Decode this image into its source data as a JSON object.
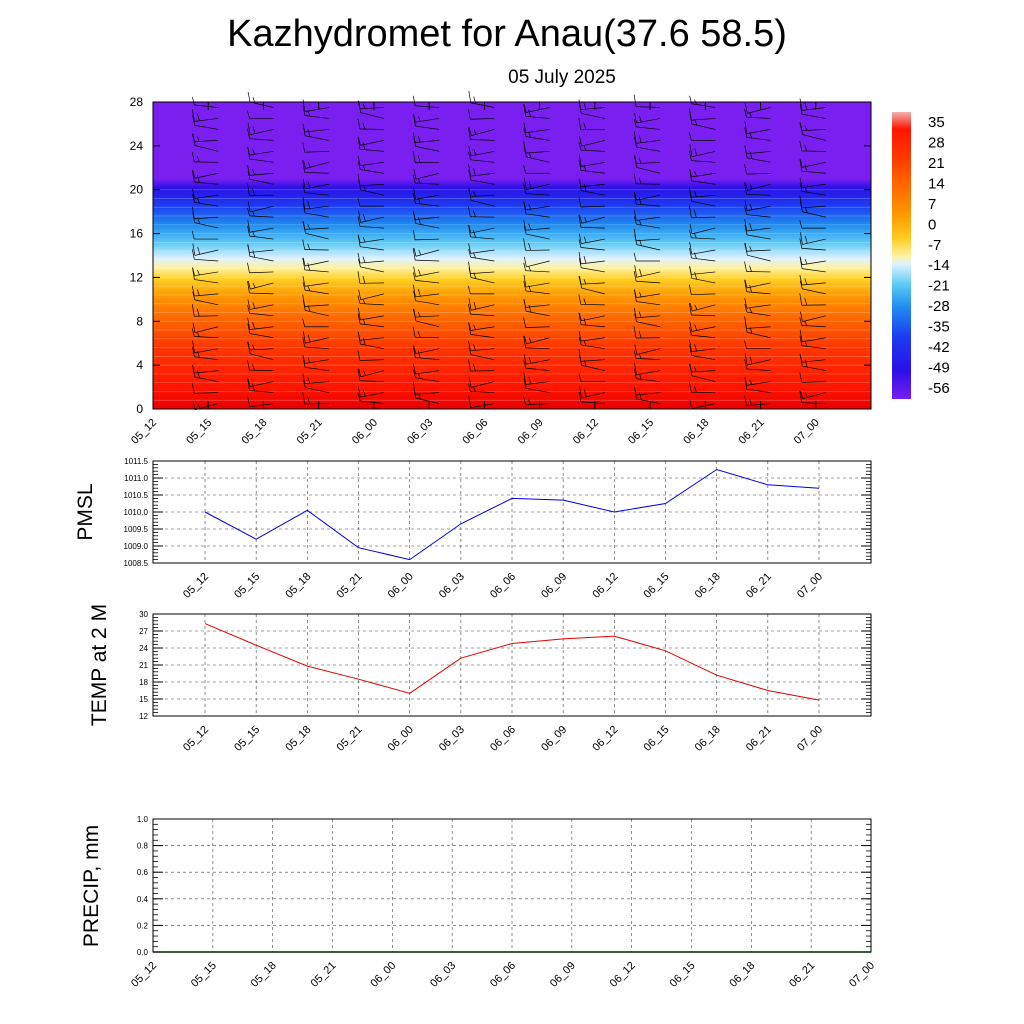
{
  "title": "Kazhydromet for Anau(37.6 58.5)",
  "subtitle": "05 July 2025",
  "time_labels": [
    "05_12",
    "05_15",
    "05_18",
    "05_21",
    "06_00",
    "06_03",
    "06_06",
    "06_09",
    "06_12",
    "06_15",
    "06_18",
    "06_21",
    "07_00"
  ],
  "chart_data": [
    {
      "id": "cross-section",
      "type": "heatmap",
      "variable": "temperature",
      "categories": [
        "05_12",
        "05_15",
        "05_18",
        "05_21",
        "06_00",
        "06_03",
        "06_06",
        "06_09",
        "06_12",
        "06_15",
        "06_18",
        "06_21",
        "07_00"
      ],
      "ylabel": "",
      "ylim": [
        0,
        28
      ],
      "yticks": [
        0,
        4,
        8,
        12,
        16,
        20,
        24,
        28
      ],
      "color_levels": [
        35,
        28,
        21,
        14,
        7,
        0,
        -7,
        -14,
        -21,
        -28,
        -35,
        -42,
        -49,
        -56
      ],
      "color_range": [
        -60,
        36
      ],
      "temperature_profile": [
        {
          "height": 0,
          "value": 33
        },
        {
          "height": 2,
          "value": 28
        },
        {
          "height": 6,
          "value": 18
        },
        {
          "height": 10,
          "value": 5
        },
        {
          "height": 13.5,
          "value": -10
        },
        {
          "height": 16,
          "value": -30
        },
        {
          "height": 19,
          "value": -50
        },
        {
          "height": 20.5,
          "value": -60
        },
        {
          "height": 28,
          "value": -60
        }
      ],
      "wind_barbs": true,
      "colors": {
        "cold": "#7a1ff0",
        "warm": "#ff1a00"
      }
    },
    {
      "id": "pmsl",
      "type": "line",
      "categories": [
        "05_12",
        "05_15",
        "05_18",
        "05_21",
        "06_00",
        "06_03",
        "06_06",
        "06_09",
        "06_12",
        "06_15",
        "06_18",
        "06_21",
        "07_00"
      ],
      "values": [
        1010.0,
        1009.2,
        1010.05,
        1008.95,
        1008.6,
        1009.65,
        1010.4,
        1010.35,
        1010.0,
        1010.25,
        1011.25,
        1010.8,
        1010.7
      ],
      "ylabel": "PMSL",
      "ylim": [
        1008.5,
        1011.5
      ],
      "yticks": [
        "1008.5",
        "1009.0",
        "1009.5",
        "1010.0",
        "1010.5",
        "1011.0",
        "1011.5"
      ],
      "grid": true,
      "color": "#0000e6"
    },
    {
      "id": "temp2m",
      "type": "line",
      "categories": [
        "05_12",
        "05_15",
        "05_18",
        "05_21",
        "06_00",
        "06_03",
        "06_06",
        "06_09",
        "06_12",
        "06_15",
        "06_18",
        "06_21",
        "07_00"
      ],
      "values": [
        28.3,
        24.5,
        20.8,
        18.5,
        16.0,
        22.2,
        24.8,
        25.6,
        26.1,
        23.5,
        19.2,
        16.5,
        14.8
      ],
      "ylabel": "TEMP at 2 M",
      "ylim": [
        12,
        30
      ],
      "yticks": [
        "12",
        "15",
        "18",
        "21",
        "24",
        "27",
        "30"
      ],
      "grid": true,
      "color": "#e60000"
    },
    {
      "id": "precip",
      "type": "line",
      "categories": [
        "05_12",
        "05_15",
        "05_18",
        "05_21",
        "06_00",
        "06_03",
        "06_06",
        "06_09",
        "06_12",
        "06_15",
        "06_18",
        "06_21",
        "07_00"
      ],
      "values": [
        0,
        0,
        0,
        0,
        0,
        0,
        0,
        0,
        0,
        0,
        0,
        0,
        0
      ],
      "ylabel": "PRECIP, mm",
      "ylim": [
        0,
        1
      ],
      "yticks": [
        "0.0",
        "0.2",
        "0.4",
        "0.6",
        "0.8",
        "1.0"
      ],
      "grid": true,
      "color": "#006400"
    }
  ]
}
